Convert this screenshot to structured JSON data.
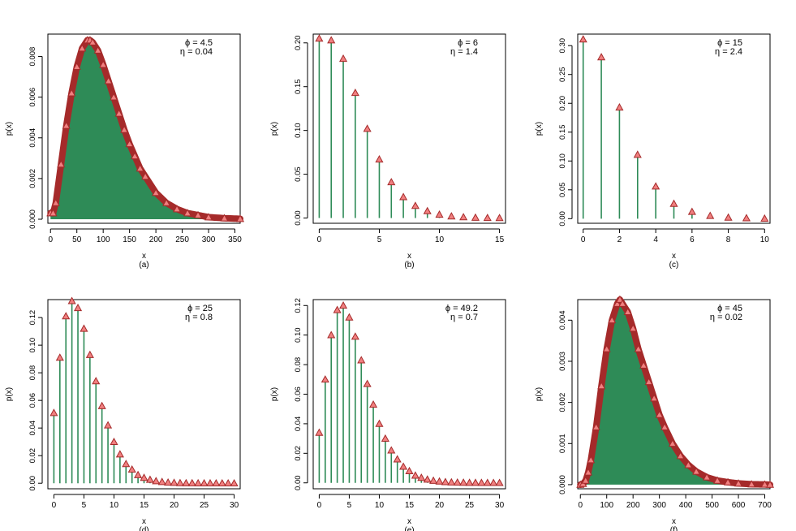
{
  "colors": {
    "stem": "#2e8b57",
    "fill": "#2e8b57",
    "marker_edge": "#a52a2a",
    "marker_fill": "#f08080",
    "axis": "#000000"
  },
  "chart_data": [
    {
      "panel": "(a)",
      "type": "area",
      "marker_shape": "triangle",
      "xlabel": "x",
      "ylabel": "p(x)",
      "legend": [
        "ϕ = 4.5",
        "η = 0.04"
      ],
      "legend_position": "top-right",
      "xlim": [
        -5,
        360
      ],
      "ylim": [
        -0.0002,
        0.0091
      ],
      "xticks": [
        0,
        50,
        100,
        150,
        200,
        250,
        300,
        350
      ],
      "yticks": [
        0.0,
        0.002,
        0.004,
        0.006,
        0.008
      ],
      "ytick_labels": [
        "0.000",
        "0.002",
        "0.004",
        "0.006",
        "0.008"
      ],
      "x": [
        0,
        5,
        10,
        20,
        30,
        40,
        50,
        60,
        70,
        75,
        80,
        90,
        100,
        110,
        120,
        130,
        140,
        150,
        160,
        170,
        180,
        200,
        220,
        240,
        260,
        280,
        300,
        330,
        360
      ],
      "y": [
        0.0003,
        0.0003,
        0.0008,
        0.0027,
        0.0046,
        0.0062,
        0.0075,
        0.0084,
        0.0088,
        0.0088,
        0.0087,
        0.0083,
        0.0076,
        0.0068,
        0.006,
        0.0052,
        0.0044,
        0.0037,
        0.0031,
        0.0025,
        0.0021,
        0.0013,
        0.0008,
        0.0005,
        0.0003,
        0.0002,
        0.0001,
        5e-05,
        2e-05
      ]
    },
    {
      "panel": "(b)",
      "type": "stem",
      "marker_shape": "triangle",
      "xlabel": "x",
      "ylabel": "p(x)",
      "legend": [
        "ϕ = 6",
        "η = 1.4"
      ],
      "legend_position": "top-right",
      "xlim": [
        -0.5,
        15.5
      ],
      "ylim": [
        -0.006,
        0.21
      ],
      "xticks": [
        0,
        5,
        10,
        15
      ],
      "yticks": [
        0.0,
        0.05,
        0.1,
        0.15,
        0.2
      ],
      "ytick_labels": [
        "0.00",
        "0.05",
        "0.10",
        "0.15",
        "0.20"
      ],
      "x": [
        0,
        1,
        2,
        3,
        4,
        5,
        6,
        7,
        8,
        9,
        10,
        11,
        12,
        13,
        14,
        15
      ],
      "y": [
        0.205,
        0.203,
        0.182,
        0.143,
        0.102,
        0.067,
        0.041,
        0.024,
        0.014,
        0.008,
        0.004,
        0.002,
        0.001,
        0.0005,
        0.0002,
        0.0001
      ]
    },
    {
      "panel": "(c)",
      "type": "stem",
      "marker_shape": "triangle",
      "xlabel": "x",
      "ylabel": "p(x)",
      "legend": [
        "ϕ = 15",
        "η = 2.4"
      ],
      "legend_position": "top-right",
      "xlim": [
        -0.3,
        10.3
      ],
      "ylim": [
        -0.008,
        0.32
      ],
      "xticks": [
        0,
        2,
        4,
        6,
        8,
        10
      ],
      "yticks": [
        0.0,
        0.05,
        0.1,
        0.15,
        0.2,
        0.25,
        0.3
      ],
      "ytick_labels": [
        "0.00",
        "0.05",
        "0.10",
        "0.15",
        "0.20",
        "0.25",
        "0.30"
      ],
      "x": [
        0,
        1,
        2,
        3,
        4,
        5,
        6,
        7,
        8,
        9,
        10
      ],
      "y": [
        0.311,
        0.28,
        0.193,
        0.111,
        0.056,
        0.026,
        0.012,
        0.005,
        0.002,
        0.001,
        0.0003
      ]
    },
    {
      "panel": "(d)",
      "type": "stem",
      "marker_shape": "triangle",
      "xlabel": "x",
      "ylabel": "p(x)",
      "legend": [
        "ϕ = 25",
        "η = 0.8"
      ],
      "legend_position": "top-right",
      "xlim": [
        -1,
        31
      ],
      "ylim": [
        -0.004,
        0.133
      ],
      "xticks": [
        0,
        5,
        10,
        15,
        20,
        25,
        30
      ],
      "yticks": [
        0.0,
        0.02,
        0.04,
        0.06,
        0.08,
        0.1,
        0.12
      ],
      "ytick_labels": [
        "0.00",
        "0.02",
        "0.04",
        "0.06",
        "0.08",
        "0.10",
        "0.12"
      ],
      "x": [
        0,
        1,
        2,
        3,
        4,
        5,
        6,
        7,
        8,
        9,
        10,
        11,
        12,
        13,
        14,
        15,
        16,
        17,
        18,
        19,
        20,
        21,
        22,
        23,
        24,
        25,
        26,
        27,
        28,
        29,
        30
      ],
      "y": [
        0.051,
        0.091,
        0.121,
        0.132,
        0.127,
        0.112,
        0.093,
        0.074,
        0.056,
        0.042,
        0.03,
        0.021,
        0.014,
        0.01,
        0.006,
        0.004,
        0.0026,
        0.0016,
        0.001,
        0.0006,
        0.0004,
        0.0002,
        0.0001,
        0.0001,
        5e-05,
        3e-05,
        2e-05,
        1e-05,
        1e-05,
        0.0,
        0.0
      ]
    },
    {
      "panel": "(e)",
      "type": "stem",
      "marker_shape": "triangle",
      "xlabel": "x",
      "ylabel": "p(x)",
      "legend": [
        "ϕ = 49.2",
        "η = 0.7"
      ],
      "legend_position": "top-right",
      "xlim": [
        -1,
        31
      ],
      "ylim": [
        -0.004,
        0.124
      ],
      "xticks": [
        0,
        5,
        10,
        15,
        20,
        25,
        30
      ],
      "yticks": [
        0.0,
        0.02,
        0.04,
        0.06,
        0.08,
        0.1,
        0.12
      ],
      "ytick_labels": [
        "0.00",
        "0.02",
        "0.04",
        "0.06",
        "0.08",
        "0.10",
        "0.12"
      ],
      "x": [
        0,
        1,
        2,
        3,
        4,
        5,
        6,
        7,
        8,
        9,
        10,
        11,
        12,
        13,
        14,
        15,
        16,
        17,
        18,
        19,
        20,
        21,
        22,
        23,
        24,
        25,
        26,
        27,
        28,
        29,
        30
      ],
      "y": [
        0.034,
        0.07,
        0.1,
        0.117,
        0.12,
        0.112,
        0.099,
        0.083,
        0.067,
        0.053,
        0.04,
        0.03,
        0.022,
        0.016,
        0.011,
        0.008,
        0.005,
        0.0035,
        0.0023,
        0.0015,
        0.001,
        0.0006,
        0.0004,
        0.0003,
        0.0002,
        0.0001,
        0.0001,
        5e-05,
        3e-05,
        2e-05,
        1e-05
      ]
    },
    {
      "panel": "(f)",
      "type": "area",
      "marker_shape": "triangle",
      "xlabel": "x",
      "ylabel": "p(x)",
      "legend": [
        "ϕ = 45",
        "η = 0.02"
      ],
      "legend_position": "top-right",
      "xlim": [
        -10,
        720
      ],
      "ylim": [
        -0.0001,
        0.0045
      ],
      "xticks": [
        0,
        100,
        200,
        300,
        400,
        500,
        600,
        700
      ],
      "yticks": [
        0.0,
        0.001,
        0.002,
        0.003,
        0.004
      ],
      "ytick_labels": [
        "0.000",
        "0.001",
        "0.002",
        "0.003",
        "0.004"
      ],
      "x": [
        0,
        10,
        20,
        30,
        40,
        60,
        80,
        100,
        120,
        140,
        150,
        160,
        180,
        200,
        220,
        240,
        260,
        280,
        300,
        320,
        350,
        380,
        410,
        440,
        480,
        520,
        560,
        600,
        650,
        700,
        720
      ],
      "y": [
        0.0,
        2e-05,
        0.0001,
        0.0003,
        0.0006,
        0.0014,
        0.0024,
        0.0033,
        0.004,
        0.0044,
        0.0045,
        0.0044,
        0.0042,
        0.0038,
        0.0033,
        0.0029,
        0.0025,
        0.0021,
        0.0017,
        0.0014,
        0.001,
        0.0007,
        0.00048,
        0.00032,
        0.00018,
        0.0001,
        6e-05,
        3e-05,
        1e-05,
        5e-06,
        0.0
      ]
    }
  ]
}
